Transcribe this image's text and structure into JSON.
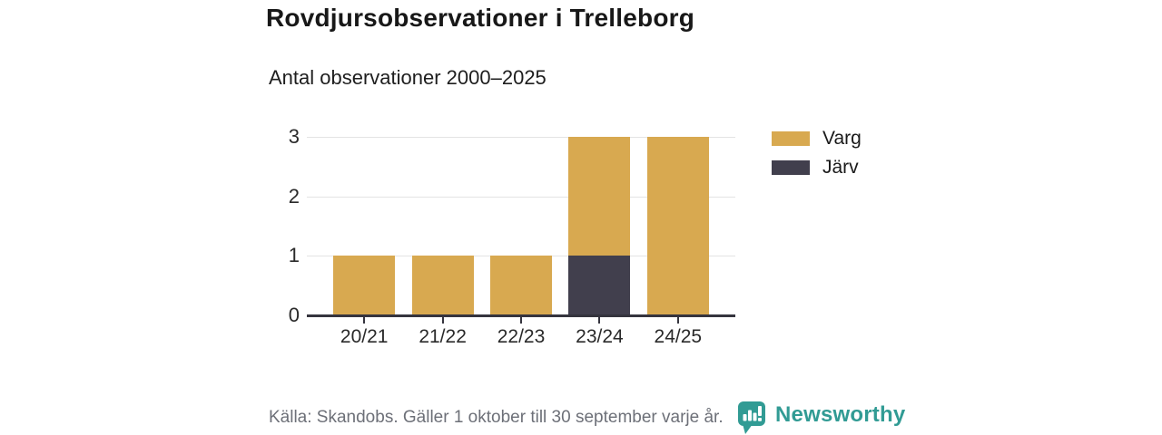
{
  "header": {
    "title": "Rovdjursobservationer i Trelleborg",
    "subtitle": "Antal observationer 2000–2025"
  },
  "chart_data": {
    "type": "bar",
    "stacked": true,
    "title": "Rovdjursobservationer i Trelleborg",
    "subtitle": "Antal observationer 2000–2025",
    "categories": [
      "20/21",
      "21/22",
      "22/23",
      "23/24",
      "24/25"
    ],
    "series": [
      {
        "name": "Varg",
        "color": "#d8a950",
        "values": [
          1,
          1,
          1,
          2,
          3
        ]
      },
      {
        "name": "Järv",
        "color": "#413f4d",
        "values": [
          0,
          0,
          0,
          1,
          0
        ]
      }
    ],
    "totals": [
      1,
      1,
      1,
      3,
      3
    ],
    "ylim": [
      0,
      3
    ],
    "yticks": [
      0,
      1,
      2,
      3
    ],
    "xlabel": "",
    "ylabel": "",
    "grid": "horizontal",
    "legend_position": "right"
  },
  "legend": {
    "items": [
      {
        "label": "Varg",
        "color": "#d8a950"
      },
      {
        "label": "Järv",
        "color": "#413f4d"
      }
    ]
  },
  "footer": {
    "source": "Källa: Skandobs. Gäller 1 oktober till 30 september varje år.",
    "brand": "Newsworthy"
  },
  "colors": {
    "varg": "#d8a950",
    "jarv": "#413f4d",
    "brand_teal": "#319b94",
    "grid": "#e3e3e3",
    "axis": "#35343e",
    "text_dark": "#1a1a1a",
    "text_muted": "#6d7078"
  }
}
